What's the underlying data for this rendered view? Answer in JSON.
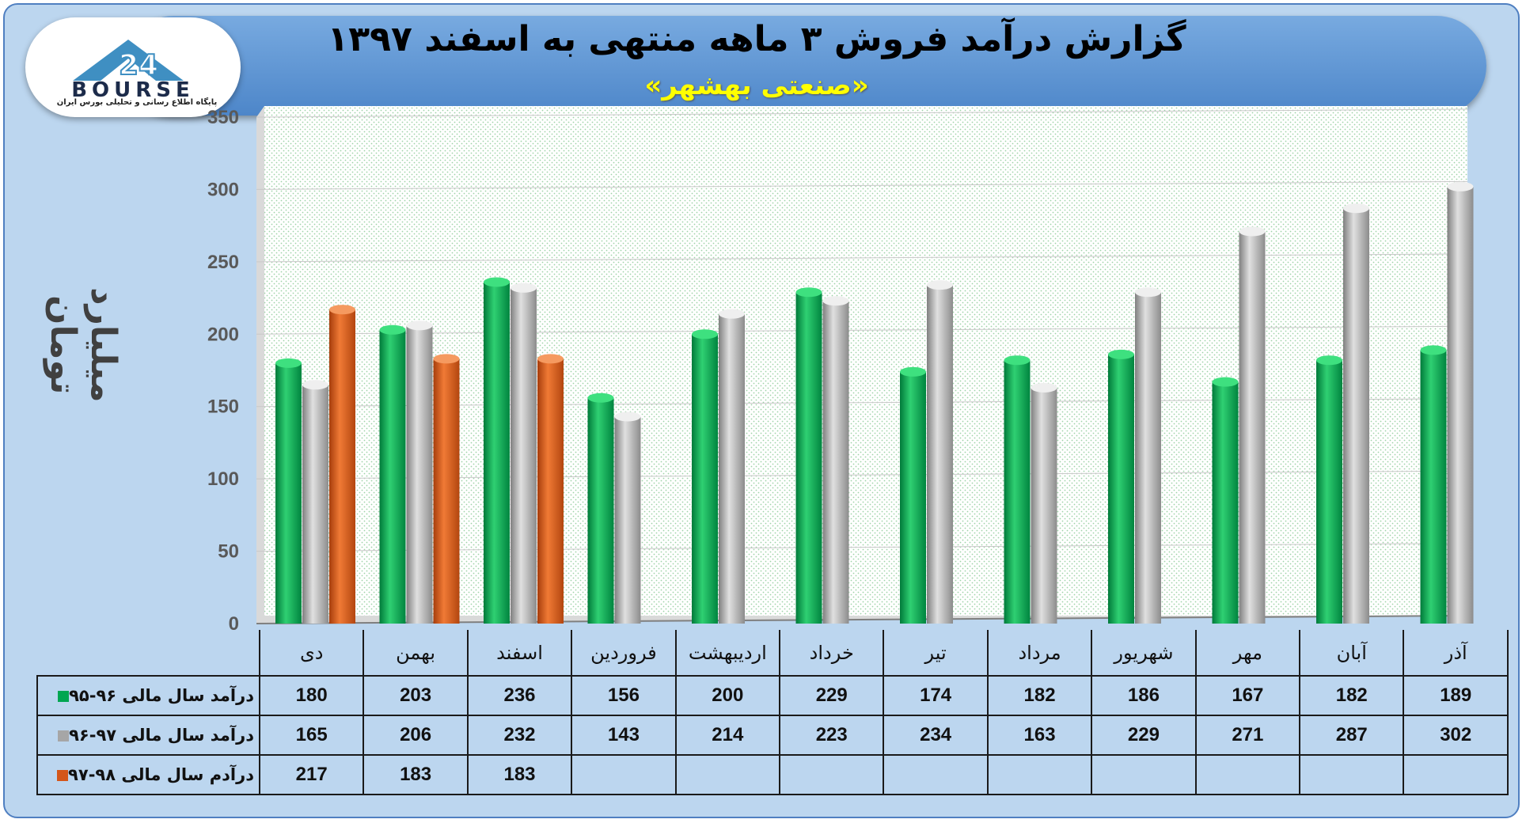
{
  "header": {
    "title": "گزارش درآمد فروش ۳ ماهه منتهی به اسفند ۱۳۹۷",
    "subtitle": "«صنعتی بهشهر»"
  },
  "logo": {
    "text": "BOURSE",
    "number": "24",
    "tagline": "پایگاه اطلاع رسانی و تحلیلی بورس ایران"
  },
  "chart_data": {
    "type": "bar",
    "ylabel": "میلیارد تومان",
    "ylim": [
      0,
      350
    ],
    "yticks": [
      0,
      50,
      100,
      150,
      200,
      250,
      300,
      350
    ],
    "grid": true,
    "categories": [
      "دی",
      "بهمن",
      "اسفند",
      "فروردین",
      "اردیبهشت",
      "خرداد",
      "تیر",
      "مرداد",
      "شهریور",
      "مهر",
      "آبان",
      "آذر"
    ],
    "series": [
      {
        "name": "درآمد سال مالی ۹۶-۹۵",
        "color": "#00a651",
        "values": [
          180,
          203,
          236,
          156,
          200,
          229,
          174,
          182,
          186,
          167,
          182,
          189
        ]
      },
      {
        "name": "درآمد سال مالی ۹۷-۹۶",
        "color": "#a6a6a6",
        "values": [
          165,
          206,
          232,
          143,
          214,
          223,
          234,
          163,
          229,
          271,
          287,
          302
        ]
      },
      {
        "name": "درآدم سال مالی ۹۸-۹۷",
        "color": "#d4561a",
        "values": [
          217,
          183,
          183,
          null,
          null,
          null,
          null,
          null,
          null,
          null,
          null,
          null
        ]
      }
    ]
  }
}
